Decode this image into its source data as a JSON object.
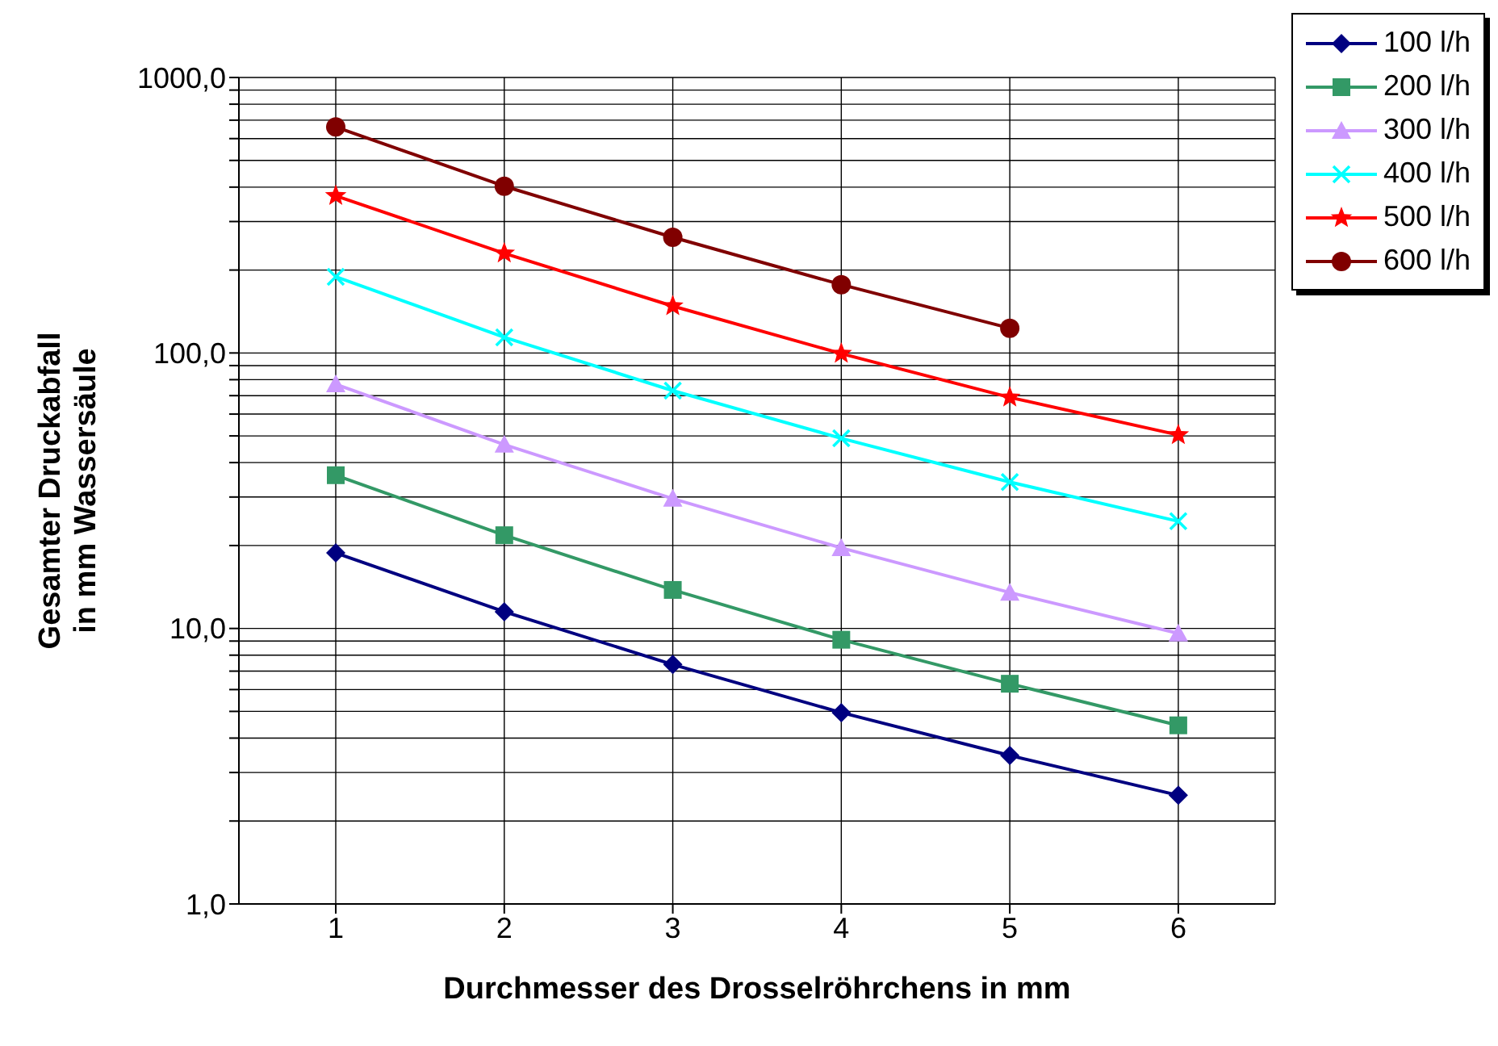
{
  "chart_data": {
    "type": "line",
    "xlabel": "Durchmesser des Drosselröhrchens in mm",
    "ylabel": "Gesamter Druckabfall\nin mm Wassersäule",
    "categories": [
      "1",
      "2",
      "3",
      "4",
      "5",
      "6"
    ],
    "series": [
      {
        "name": "100 l/h",
        "color": "#000080",
        "marker": "diamond",
        "values": [
          18.8,
          11.5,
          7.4,
          4.95,
          3.46,
          2.48
        ]
      },
      {
        "name": "200 l/h",
        "color": "#339966",
        "marker": "square",
        "values": [
          36,
          21.8,
          13.8,
          9.1,
          6.3,
          4.45
        ]
      },
      {
        "name": "300 l/h",
        "color": "#cc99ff",
        "marker": "triangle",
        "values": [
          77,
          46.5,
          29.6,
          19.6,
          13.5,
          9.6
        ]
      },
      {
        "name": "400 l/h",
        "color": "#00ffff",
        "marker": "cross",
        "values": [
          189,
          114,
          73,
          49,
          34,
          24.5
        ]
      },
      {
        "name": "500 l/h",
        "color": "#ff0000",
        "marker": "star",
        "values": [
          372,
          230,
          148,
          99.5,
          69,
          50.4
        ]
      },
      {
        "name": "600 l/h",
        "color": "#800000",
        "marker": "circle",
        "values": [
          661,
          403,
          263,
          177,
          123,
          null
        ]
      }
    ],
    "log": "y",
    "ylim": [
      1,
      1000
    ],
    "yticks": [
      {
        "value": 1,
        "label": "1,0"
      },
      {
        "value": 2,
        "label": null
      },
      {
        "value": 3,
        "label": null
      },
      {
        "value": 4,
        "label": null
      },
      {
        "value": 5,
        "label": null
      },
      {
        "value": 6,
        "label": null
      },
      {
        "value": 7,
        "label": null
      },
      {
        "value": 8,
        "label": null
      },
      {
        "value": 9,
        "label": null
      },
      {
        "value": 10,
        "label": "10,0"
      },
      {
        "value": 20,
        "label": null
      },
      {
        "value": 30,
        "label": null
      },
      {
        "value": 40,
        "label": null
      },
      {
        "value": 50,
        "label": null
      },
      {
        "value": 60,
        "label": null
      },
      {
        "value": 70,
        "label": null
      },
      {
        "value": 80,
        "label": null
      },
      {
        "value": 90,
        "label": null
      },
      {
        "value": 100,
        "label": "100,0"
      },
      {
        "value": 200,
        "label": null
      },
      {
        "value": 300,
        "label": null
      },
      {
        "value": 400,
        "label": null
      },
      {
        "value": 500,
        "label": null
      },
      {
        "value": 600,
        "label": null
      },
      {
        "value": 700,
        "label": null
      },
      {
        "value": 800,
        "label": null
      },
      {
        "value": 900,
        "label": null
      },
      {
        "value": 1000,
        "label": "1000,0"
      }
    ],
    "grid": true,
    "legend": "top right"
  }
}
